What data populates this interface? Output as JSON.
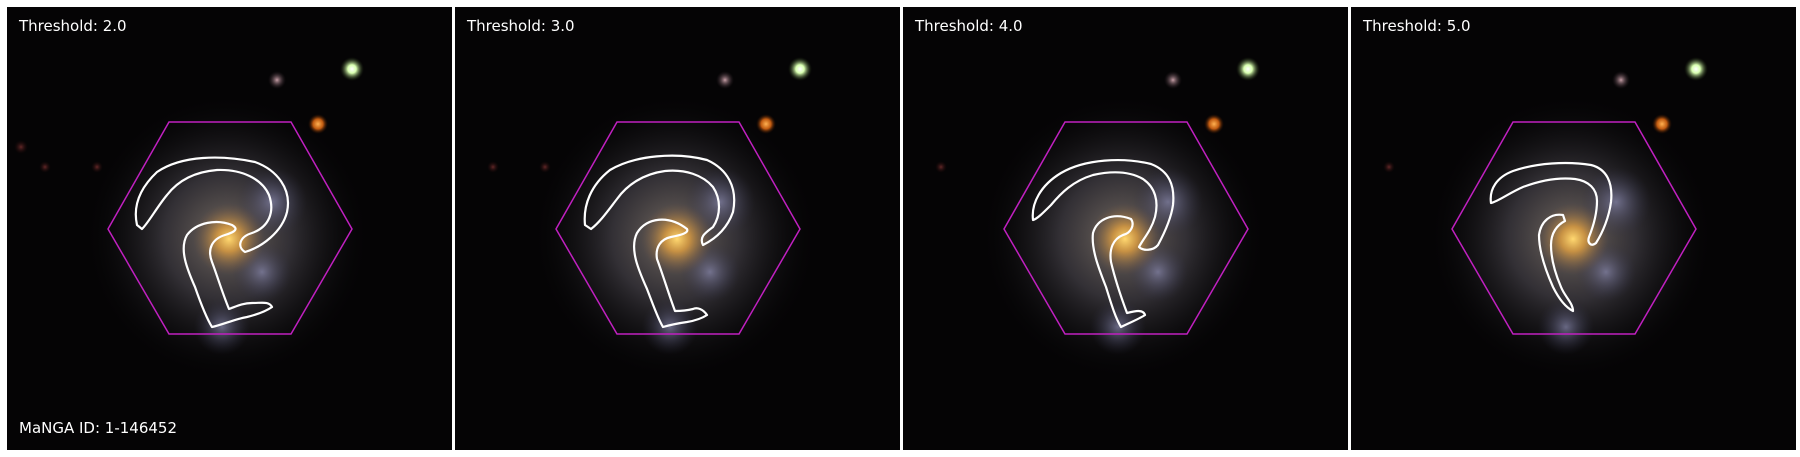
{
  "panels": [
    {
      "threshold_label": "Threshold: 2.0"
    },
    {
      "threshold_label": "Threshold: 3.0"
    },
    {
      "threshold_label": "Threshold: 4.0"
    },
    {
      "threshold_label": "Threshold: 5.0"
    }
  ],
  "manga_id_label": "MaNGA ID: 1-146452",
  "colors": {
    "hexagon": "#c020c0",
    "contour": "#ffffff",
    "background": "#000000"
  }
}
